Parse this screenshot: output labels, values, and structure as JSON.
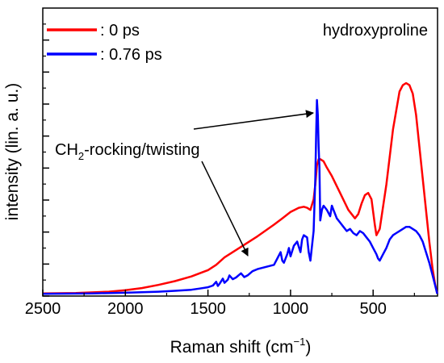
{
  "chart_data": {
    "type": "line",
    "title": "",
    "sample_label": "hydroxyproline",
    "xlabel": "Raman shift (cm",
    "xlabel_sup": "−1",
    "xlabel_end": ")",
    "ylabel": "intensity (lin. a. u.)",
    "xlim": [
      2500,
      110
    ],
    "x_reversed": true,
    "ylim": [
      0,
      1
    ],
    "x_ticks": [
      2500,
      2000,
      1500,
      1000,
      500
    ],
    "x_tick_labels": [
      "2500",
      "2000",
      "1500",
      "1000",
      "500"
    ],
    "y_tick_labels_shown": false,
    "grid": false,
    "legend_position": "top-left",
    "series": [
      {
        "name": ": 0 ps",
        "color": "#ff0000",
        "x": [
          2500,
          2300,
          2100,
          2000,
          1900,
          1800,
          1700,
          1600,
          1500,
          1450,
          1400,
          1300,
          1200,
          1100,
          1050,
          1000,
          950,
          920,
          900,
          880,
          860,
          850,
          840,
          830,
          820,
          800,
          780,
          750,
          700,
          650,
          610,
          590,
          570,
          550,
          530,
          510,
          490,
          480,
          460,
          420,
          380,
          340,
          320,
          300,
          280,
          260,
          240,
          220,
          200,
          180,
          160,
          140,
          125,
          112
        ],
        "y": [
          0.005,
          0.007,
          0.013,
          0.02,
          0.03,
          0.045,
          0.063,
          0.085,
          0.115,
          0.14,
          0.175,
          0.225,
          0.275,
          0.33,
          0.36,
          0.39,
          0.41,
          0.415,
          0.41,
          0.4,
          0.45,
          0.52,
          0.61,
          0.64,
          0.64,
          0.63,
          0.6,
          0.56,
          0.48,
          0.4,
          0.36,
          0.38,
          0.43,
          0.47,
          0.48,
          0.45,
          0.33,
          0.28,
          0.31,
          0.52,
          0.78,
          0.96,
          0.99,
          1.0,
          0.99,
          0.95,
          0.85,
          0.7,
          0.55,
          0.4,
          0.25,
          0.12,
          0.05,
          0.005
        ]
      },
      {
        "name": ": 0.76 ps",
        "color": "#0000ff",
        "x": [
          2500,
          2200,
          2000,
          1800,
          1700,
          1600,
          1550,
          1500,
          1470,
          1450,
          1440,
          1430,
          1410,
          1400,
          1380,
          1370,
          1350,
          1330,
          1300,
          1280,
          1260,
          1230,
          1200,
          1150,
          1100,
          1080,
          1060,
          1050,
          1040,
          1020,
          1010,
          1000,
          980,
          960,
          940,
          930,
          920,
          900,
          890,
          880,
          860,
          850,
          845,
          840,
          835,
          830,
          825,
          820,
          810,
          800,
          790,
          780,
          760,
          750,
          740,
          720,
          700,
          680,
          660,
          640,
          620,
          600,
          580,
          560,
          540,
          520,
          500,
          480,
          470,
          460,
          440,
          420,
          400,
          380,
          360,
          340,
          320,
          300,
          280,
          260,
          240,
          220,
          200,
          180,
          160,
          140,
          125,
          112
        ],
        "y": [
          0.003,
          0.005,
          0.008,
          0.013,
          0.017,
          0.022,
          0.028,
          0.034,
          0.042,
          0.06,
          0.04,
          0.05,
          0.075,
          0.055,
          0.07,
          0.09,
          0.072,
          0.08,
          0.1,
          0.082,
          0.09,
          0.11,
          0.12,
          0.13,
          0.14,
          0.17,
          0.2,
          0.16,
          0.15,
          0.19,
          0.22,
          0.18,
          0.23,
          0.25,
          0.2,
          0.26,
          0.28,
          0.27,
          0.2,
          0.16,
          0.3,
          0.55,
          0.75,
          0.92,
          0.85,
          0.7,
          0.6,
          0.35,
          0.4,
          0.42,
          0.41,
          0.4,
          0.37,
          0.42,
          0.4,
          0.36,
          0.34,
          0.32,
          0.3,
          0.31,
          0.29,
          0.28,
          0.3,
          0.29,
          0.27,
          0.25,
          0.22,
          0.19,
          0.17,
          0.16,
          0.19,
          0.22,
          0.26,
          0.28,
          0.29,
          0.3,
          0.31,
          0.32,
          0.32,
          0.31,
          0.3,
          0.28,
          0.25,
          0.2,
          0.15,
          0.09,
          0.045,
          0.003
        ]
      }
    ],
    "annotations": [
      {
        "text_main": "CH",
        "text_sub": "2",
        "text_rest": "-rocking/twisting"
      }
    ]
  }
}
